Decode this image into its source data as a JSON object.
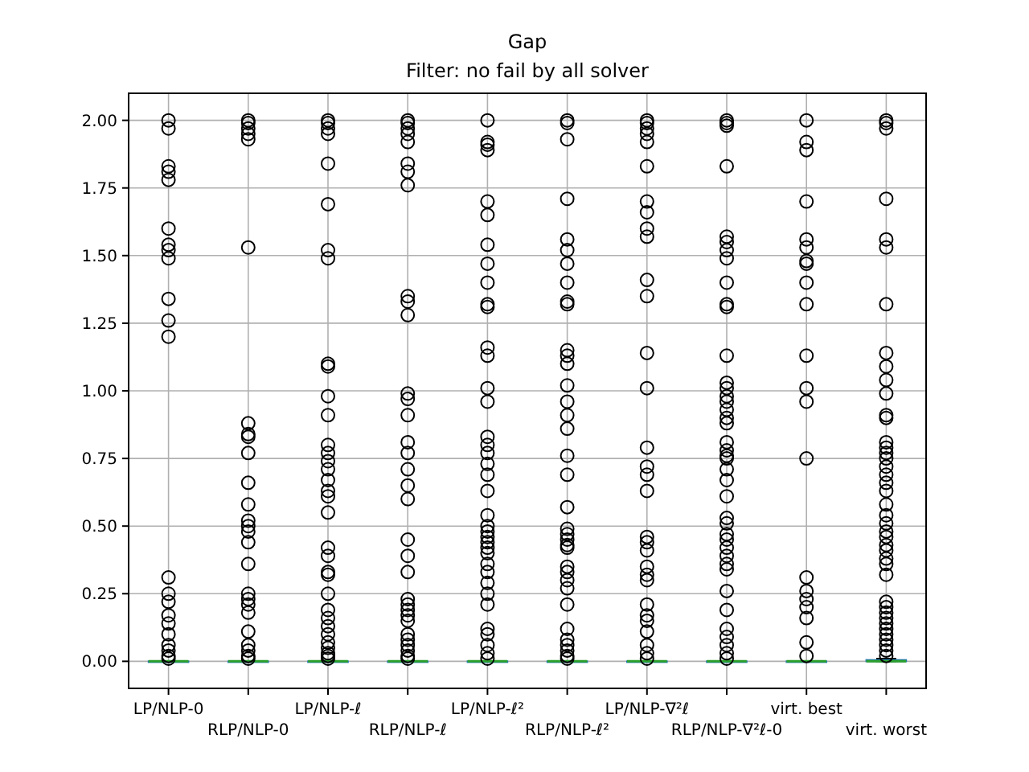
{
  "chart_data": {
    "type": "box",
    "title": "Gap",
    "subtitle": "Filter: no fail by all solver",
    "categories": [
      "LP/NLP-0",
      "RLP/NLP-0",
      "LP/NLP-ℓ",
      "RLP/NLP-ℓ",
      "LP/NLP-ℓ²",
      "RLP/NLP-ℓ²",
      "LP/NLP-∇²ℓ",
      "RLP/NLP-∇²ℓ-0",
      "virt. best",
      "virt. worst"
    ],
    "boxes": [
      {
        "low": 0,
        "q1": 0,
        "median": 0,
        "q3": 0,
        "high": 0,
        "outliers": [
          2.0,
          1.97,
          1.83,
          1.81,
          1.78,
          1.6,
          1.54,
          1.52,
          1.49,
          1.34,
          1.26,
          1.2,
          0.31,
          0.25,
          0.22,
          0.17,
          0.14,
          0.1,
          0.06,
          0.04,
          0.02,
          0.01
        ]
      },
      {
        "low": 0,
        "q1": 0,
        "median": 0,
        "q3": 0,
        "high": 0,
        "outliers": [
          2.0,
          1.99,
          1.97,
          1.95,
          1.93,
          1.53,
          0.88,
          0.84,
          0.83,
          0.77,
          0.66,
          0.58,
          0.52,
          0.5,
          0.48,
          0.44,
          0.36,
          0.25,
          0.23,
          0.21,
          0.18,
          0.11,
          0.06,
          0.04,
          0.02,
          0.01
        ]
      },
      {
        "low": 0,
        "q1": 0,
        "median": 0,
        "q3": 0,
        "high": 0,
        "outliers": [
          2.0,
          1.99,
          1.97,
          1.95,
          1.84,
          1.69,
          1.52,
          1.49,
          1.1,
          1.09,
          0.98,
          0.91,
          0.8,
          0.77,
          0.74,
          0.71,
          0.67,
          0.63,
          0.61,
          0.55,
          0.42,
          0.39,
          0.33,
          0.32,
          0.25,
          0.19,
          0.16,
          0.13,
          0.1,
          0.07,
          0.05,
          0.03,
          0.02,
          0.01
        ]
      },
      {
        "low": 0,
        "q1": 0,
        "median": 0,
        "q3": 0,
        "high": 0,
        "outliers": [
          2.0,
          1.99,
          1.97,
          1.95,
          1.92,
          1.84,
          1.81,
          1.76,
          1.35,
          1.33,
          1.28,
          0.99,
          0.97,
          0.91,
          0.81,
          0.77,
          0.71,
          0.65,
          0.6,
          0.45,
          0.39,
          0.33,
          0.23,
          0.21,
          0.19,
          0.17,
          0.15,
          0.1,
          0.08,
          0.06,
          0.04,
          0.02,
          0.01
        ]
      },
      {
        "low": 0,
        "q1": 0,
        "median": 0,
        "q3": 0,
        "high": 0,
        "outliers": [
          2.0,
          1.92,
          1.91,
          1.89,
          1.7,
          1.65,
          1.54,
          1.47,
          1.4,
          1.32,
          1.31,
          1.16,
          1.13,
          1.01,
          0.96,
          0.83,
          0.8,
          0.77,
          0.73,
          0.69,
          0.63,
          0.54,
          0.5,
          0.48,
          0.46,
          0.44,
          0.42,
          0.4,
          0.36,
          0.33,
          0.29,
          0.25,
          0.21,
          0.12,
          0.1,
          0.06,
          0.03,
          0.01
        ]
      },
      {
        "low": 0,
        "q1": 0,
        "median": 0,
        "q3": 0,
        "high": 0,
        "outliers": [
          2.0,
          1.99,
          1.93,
          1.71,
          1.56,
          1.52,
          1.47,
          1.4,
          1.33,
          1.32,
          1.15,
          1.13,
          1.1,
          1.02,
          0.96,
          0.91,
          0.86,
          0.76,
          0.69,
          0.57,
          0.49,
          0.47,
          0.45,
          0.43,
          0.42,
          0.35,
          0.33,
          0.3,
          0.27,
          0.21,
          0.12,
          0.08,
          0.06,
          0.04,
          0.02,
          0.01
        ]
      },
      {
        "low": 0,
        "q1": 0,
        "median": 0,
        "q3": 0,
        "high": 0,
        "outliers": [
          2.0,
          1.99,
          1.97,
          1.95,
          1.92,
          1.83,
          1.7,
          1.66,
          1.6,
          1.57,
          1.41,
          1.35,
          1.14,
          1.01,
          0.79,
          0.72,
          0.69,
          0.63,
          0.46,
          0.44,
          0.41,
          0.35,
          0.32,
          0.3,
          0.21,
          0.17,
          0.15,
          0.11,
          0.06,
          0.03,
          0.01
        ]
      },
      {
        "low": 0,
        "q1": 0,
        "median": 0,
        "q3": 0,
        "high": 0,
        "outliers": [
          2.0,
          1.99,
          1.98,
          1.83,
          1.57,
          1.55,
          1.52,
          1.49,
          1.4,
          1.32,
          1.31,
          1.13,
          1.03,
          1.01,
          0.98,
          0.96,
          0.93,
          0.9,
          0.88,
          0.81,
          0.78,
          0.76,
          0.75,
          0.71,
          0.67,
          0.61,
          0.53,
          0.51,
          0.47,
          0.45,
          0.42,
          0.39,
          0.36,
          0.34,
          0.26,
          0.19,
          0.12,
          0.09,
          0.06,
          0.03,
          0.01
        ]
      },
      {
        "low": 0,
        "q1": 0,
        "median": 0,
        "q3": 0,
        "high": 0,
        "outliers": [
          2.0,
          1.92,
          1.89,
          1.7,
          1.56,
          1.53,
          1.48,
          1.47,
          1.4,
          1.32,
          1.13,
          1.01,
          0.96,
          0.75,
          0.31,
          0.26,
          0.23,
          0.2,
          0.16,
          0.07,
          0.02
        ]
      },
      {
        "low": 0,
        "q1": 0,
        "median": 0,
        "q3": 0.005,
        "high": 0.01,
        "outliers": [
          2.0,
          1.99,
          1.97,
          1.71,
          1.56,
          1.53,
          1.32,
          1.14,
          1.09,
          1.04,
          0.99,
          0.91,
          0.9,
          0.81,
          0.79,
          0.77,
          0.75,
          0.72,
          0.69,
          0.66,
          0.63,
          0.58,
          0.54,
          0.51,
          0.48,
          0.46,
          0.43,
          0.41,
          0.38,
          0.36,
          0.32,
          0.22,
          0.2,
          0.18,
          0.16,
          0.14,
          0.12,
          0.1,
          0.08,
          0.06,
          0.04,
          0.02
        ]
      }
    ],
    "color": "#1f77b4",
    "ylim": [
      -0.1,
      2.1
    ],
    "yticks": [
      {
        "value": 0,
        "label": "0.00"
      },
      {
        "value": 0.25,
        "label": "0.25"
      },
      {
        "value": 0.5,
        "label": "0.50"
      },
      {
        "value": 0.75,
        "label": "0.75"
      },
      {
        "value": 1,
        "label": "1.00"
      },
      {
        "value": 1.25,
        "label": "1.25"
      },
      {
        "value": 1.5,
        "label": "1.50"
      },
      {
        "value": 1.75,
        "label": "1.75"
      },
      {
        "value": 2,
        "label": "2.00"
      }
    ],
    "grid": true,
    "marker": "circle"
  }
}
